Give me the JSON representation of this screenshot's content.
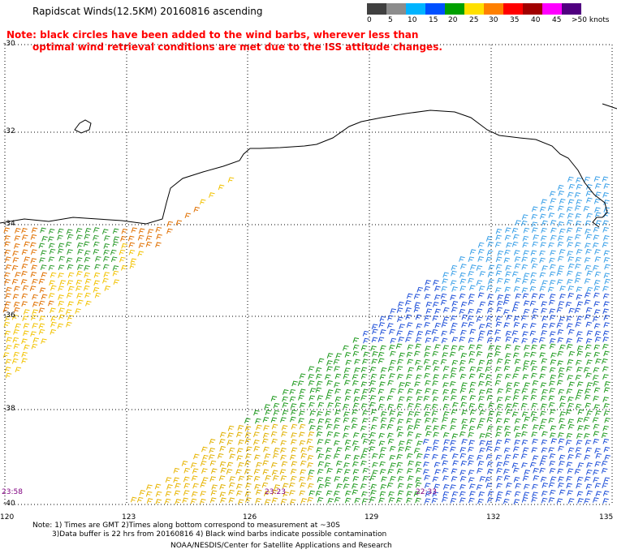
{
  "title": "Rapidscat Winds(12.5KM) 20160816 ascending",
  "note": {
    "line1": "Note: black circles have been added to the wind barbs, wherever less than",
    "line2": "optimal wind retrieval conditions are met due to the ISS attitude changes."
  },
  "colorbar": {
    "labels": [
      "0",
      "5",
      "10",
      "15",
      "20",
      "25",
      "30",
      "35",
      "40",
      "45",
      ">50 knots"
    ],
    "colors": [
      "#404040",
      "#8c8c8c",
      "#00b4ff",
      "#0050ff",
      "#00a000",
      "#ffe000",
      "#ff8000",
      "#ff0000",
      "#a00000",
      "#ff00ff",
      "#500080"
    ]
  },
  "lat_labels": [
    "-30",
    "-32",
    "-34",
    "-36",
    "-38",
    "-40"
  ],
  "lon_labels": [
    "120",
    "123",
    "126",
    "129",
    "132",
    "135"
  ],
  "time_labels": [
    "23:58",
    "23:23",
    "22:33"
  ],
  "footnote": {
    "line1": "Note: 1) Times are GMT 2)Times along bottom correspond to measurement at ~30S",
    "line2": "3)Data buffer is 22 hrs from 20160816 4) Black wind barbs indicate possible contamination"
  },
  "credit": "NOAA/NESDIS/Center for Satellite Applications and Research",
  "map_extent": {
    "lon": [
      120,
      135
    ],
    "lat": [
      -40,
      -30
    ]
  }
}
